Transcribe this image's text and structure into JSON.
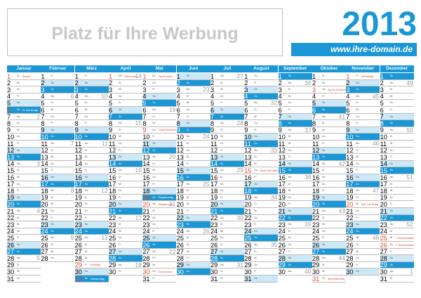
{
  "header": {
    "ad_text": "Platz für Ihre Werbung",
    "year": "2013",
    "domain": "www.ihre-domain.de"
  },
  "colors": {
    "accent": "#1b97d5",
    "saturday": "#cde8f7",
    "holiday": "#e24b2d"
  },
  "calendar": {
    "year": 2013,
    "months": [
      {
        "name": "Januar",
        "days": 31,
        "first_weekday": 1
      },
      {
        "name": "Februar",
        "days": 28,
        "first_weekday": 4
      },
      {
        "name": "März",
        "days": 31,
        "first_weekday": 4
      },
      {
        "name": "April",
        "days": 30,
        "first_weekday": 0
      },
      {
        "name": "Mai",
        "days": 31,
        "first_weekday": 2
      },
      {
        "name": "Juni",
        "days": 30,
        "first_weekday": 5
      },
      {
        "name": "Juli",
        "days": 31,
        "first_weekday": 0
      },
      {
        "name": "August",
        "days": 31,
        "first_weekday": 3
      },
      {
        "name": "September",
        "days": 30,
        "first_weekday": 6
      },
      {
        "name": "Oktober",
        "days": 31,
        "first_weekday": 1
      },
      {
        "name": "November",
        "days": 30,
        "first_weekday": 4
      },
      {
        "name": "Dezember",
        "days": 31,
        "first_weekday": 6
      }
    ],
    "weekday_abbr": [
      "Mo",
      "Di",
      "Mi",
      "Do",
      "Fr",
      "Sa",
      "So"
    ],
    "holidays": [
      {
        "month": 0,
        "day": 1,
        "name": "Neujahr"
      },
      {
        "month": 0,
        "day": 6,
        "name": "Hl. Drei Könige"
      },
      {
        "month": 2,
        "day": 29,
        "name": "Karfreitag"
      },
      {
        "month": 2,
        "day": 31,
        "name": "Ostersonntag"
      },
      {
        "month": 3,
        "day": 1,
        "name": "Ostermontag"
      },
      {
        "month": 4,
        "day": 1,
        "name": "Tag der Arbeit"
      },
      {
        "month": 4,
        "day": 9,
        "name": "Christi Himmelfahrt"
      },
      {
        "month": 4,
        "day": 19,
        "name": "Pfingstsonntag"
      },
      {
        "month": 4,
        "day": 20,
        "name": "Pfingstmontag"
      },
      {
        "month": 4,
        "day": 30,
        "name": "Fronleichnam"
      },
      {
        "month": 7,
        "day": 15,
        "name": "Mariä Himmelfahrt"
      },
      {
        "month": 9,
        "day": 3,
        "name": "Tag der Deutschen Einheit"
      },
      {
        "month": 9,
        "day": 31,
        "name": "Reformationstag"
      },
      {
        "month": 10,
        "day": 1,
        "name": "Allerheiligen"
      },
      {
        "month": 10,
        "day": 20,
        "name": "Buß- und Bettag"
      },
      {
        "month": 11,
        "day": 25,
        "name": "1. Weihnachtsfeiertag"
      },
      {
        "month": 11,
        "day": 26,
        "name": "2. Weihnachtsfeiertag"
      }
    ]
  }
}
